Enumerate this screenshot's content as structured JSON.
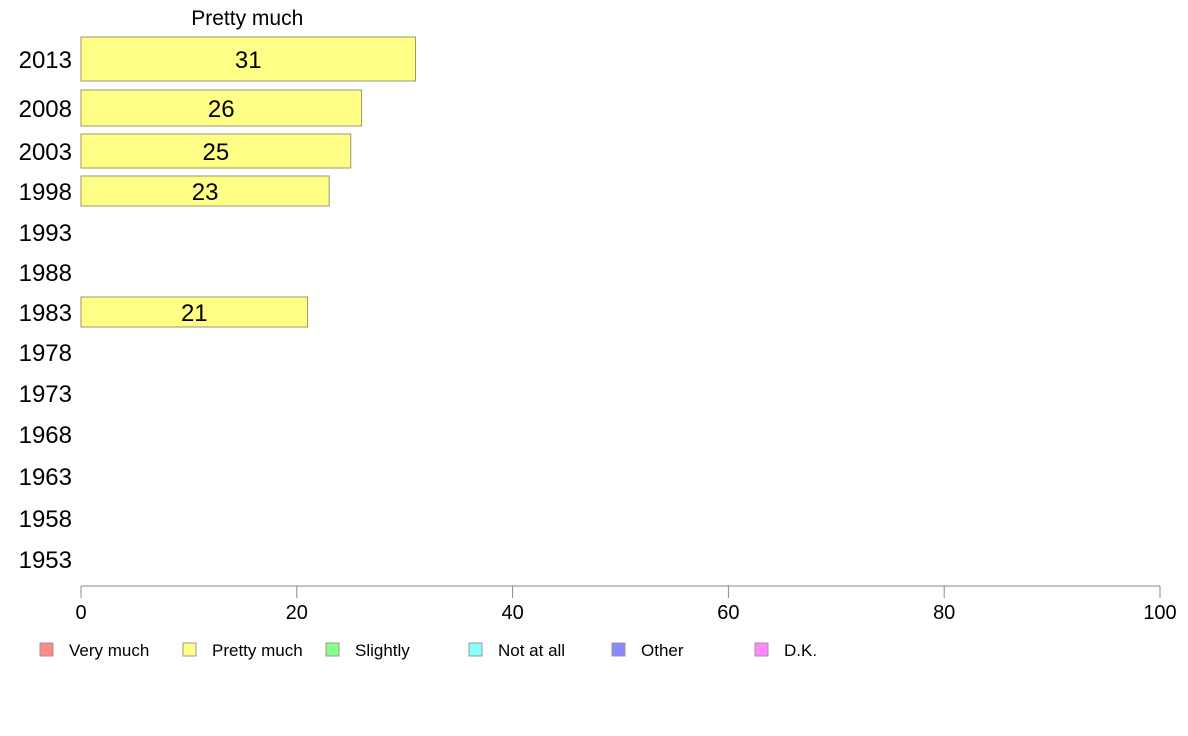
{
  "chart_data": {
    "type": "bar",
    "orientation": "horizontal",
    "title": "Pretty much",
    "categories": [
      "2013",
      "2008",
      "2003",
      "1998",
      "1993",
      "1988",
      "1983",
      "1978",
      "1973",
      "1968",
      "1963",
      "1958",
      "1953"
    ],
    "series": [
      {
        "name": "Pretty much",
        "color": "#ffff88",
        "values": [
          31,
          26,
          25,
          23,
          null,
          null,
          21,
          null,
          null,
          null,
          null,
          null,
          null
        ]
      }
    ],
    "xlim": [
      0,
      100
    ],
    "xticks": [
      0,
      20,
      40,
      60,
      80,
      100
    ],
    "grid": false,
    "legend_position": "bottom",
    "legend": [
      {
        "label": "Very much",
        "color": "#ff8888"
      },
      {
        "label": "Pretty much",
        "color": "#ffff88"
      },
      {
        "label": "Slightly",
        "color": "#88ff88"
      },
      {
        "label": "Not at all",
        "color": "#88ffff"
      },
      {
        "label": "Other",
        "color": "#8888ff"
      },
      {
        "label": "D.K.",
        "color": "#ff88ff"
      }
    ]
  }
}
